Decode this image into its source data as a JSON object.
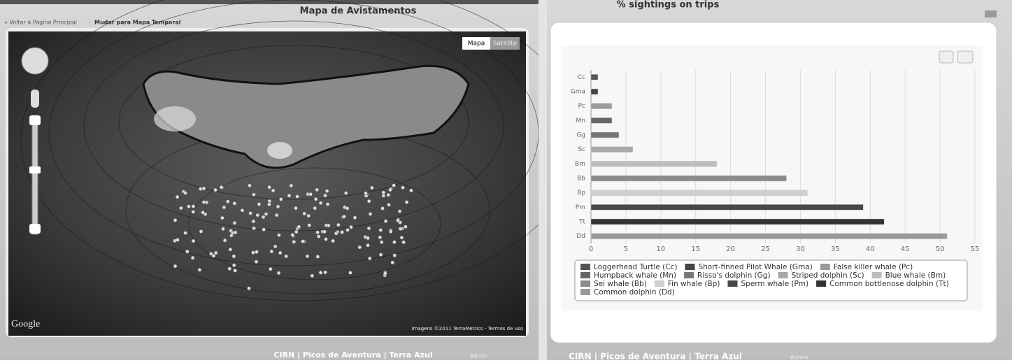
{
  "left_panel": {
    "title": "Mapa de Avistamentos",
    "nav": {
      "back": "« Voltar à Página Principal",
      "separator": "·",
      "switch": "Mudar para Mapa Temporal"
    },
    "map": {
      "buttons": [
        "Mapa",
        "Satélite"
      ],
      "logo": "Google",
      "attribution": "Imagens ©2011 TerraMetrics - Termos de uso"
    },
    "footer": {
      "links": "CIRN | Picos de Aventura | Terra Azul",
      "admin": "Admin"
    }
  },
  "chart_data": {
    "type": "bar",
    "orientation": "horizontal",
    "title": "% sightings on trips",
    "categories": [
      "Cc",
      "Gma",
      "Pc",
      "Mn",
      "Gg",
      "Sc",
      "Bm",
      "Bb",
      "Bp",
      "Pm",
      "Tt",
      "Dd"
    ],
    "values": [
      1,
      1,
      3,
      3,
      4,
      6,
      18,
      28,
      31,
      39,
      42,
      51
    ],
    "colors": [
      "#555555",
      "#444444",
      "#9a9a9a",
      "#666666",
      "#777777",
      "#a8a8a8",
      "#bdbdbd",
      "#8a8a8a",
      "#cfcfcf",
      "#484848",
      "#333333",
      "#999999"
    ],
    "legend": [
      "Loggerhead Turtle (Cc)",
      "Short-finned Pilot Whale (Gma)",
      "False killer whale (Pc)",
      "Humpback whale (Mn)",
      "Risso's dolphin (Gg)",
      "Striped dolphin (Sc)",
      "Blue whale (Bm)",
      "Sei whale (Bb)",
      "Fin whale (Bp)",
      "Sperm whale (Pm)",
      "Common bottlenose dolphin (Tt)",
      "Common dolphin (Dd)"
    ],
    "xlim": [
      0,
      55
    ],
    "xticks": [
      0,
      5,
      10,
      15,
      20,
      25,
      30,
      35,
      40,
      45,
      50,
      55
    ],
    "grid": true
  },
  "right_panel": {
    "footer": {
      "links": "CIRN | Picos de Aventura | Terra Azul",
      "admin": "Admin"
    }
  }
}
